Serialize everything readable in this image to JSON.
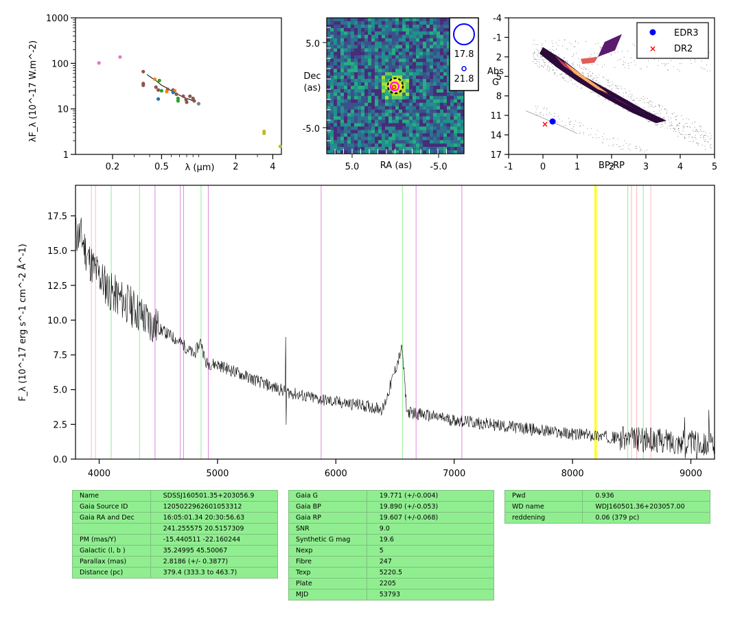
{
  "colors": {
    "EDR3": "#0000ff",
    "DR2": "#ff0000",
    "spectrum": "#000000",
    "line_pink": "#ffb6c1",
    "line_green": "#90ee90",
    "line_violet": "#dd88dd",
    "line_yellow": "#ffff00",
    "table_bg": "#90ee90"
  },
  "chart_data": [
    {
      "type": "scatter",
      "panel": "sed",
      "xscale": "log",
      "yscale": "log",
      "ylabel": "λF_λ (10^-17 W.m^-2)",
      "xlabel": "λ (μm)",
      "ylim": [
        1,
        1000
      ],
      "xlim": [
        0.1,
        4.7
      ],
      "yticks": [
        {
          "v": 1,
          "label": "1"
        },
        {
          "v": 10,
          "label": "10"
        },
        {
          "v": 100,
          "label": "100"
        },
        {
          "v": 1000,
          "label": "1000"
        }
      ],
      "xticks": [
        {
          "v": 0.2,
          "label": "0.2"
        },
        {
          "v": 0.5,
          "label": "0.5"
        },
        {
          "v": 2,
          "label": "2"
        },
        {
          "v": 4,
          "label": "4"
        }
      ],
      "series": [
        {
          "color": "#e377c2",
          "points": [
            [
              0.155,
              102
            ],
            [
              0.23,
              138
            ]
          ]
        },
        {
          "color": "#8c564b",
          "points": [
            [
              0.355,
              66
            ],
            [
              0.355,
              36
            ],
            [
              0.355,
              33
            ],
            [
              0.45,
              30
            ],
            [
              0.47,
              26
            ],
            [
              0.56,
              27
            ],
            [
              0.62,
              26
            ],
            [
              0.66,
              21
            ],
            [
              0.75,
              19
            ],
            [
              0.79,
              16
            ],
            [
              0.8,
              14
            ],
            [
              0.85,
              19
            ],
            [
              0.9,
              17
            ],
            [
              0.92,
              15
            ]
          ]
        },
        {
          "color": "#ff7f0e",
          "points": [
            [
              0.44,
              45
            ],
            [
              0.55,
              24
            ],
            [
              0.64,
              25
            ]
          ]
        },
        {
          "color": "#1f77b4",
          "points": [
            [
              0.47,
              16.5
            ],
            [
              0.62,
              23
            ]
          ]
        },
        {
          "color": "#2ca02c",
          "points": [
            [
              0.48,
              42
            ],
            [
              0.5,
              25
            ],
            [
              0.68,
              17
            ],
            [
              0.68,
              15
            ]
          ]
        },
        {
          "color": "#7f7f7f",
          "points": [
            [
              1.0,
              13
            ]
          ]
        },
        {
          "color": "#bcbd22",
          "points": [
            [
              3.4,
              3.2
            ],
            [
              3.4,
              2.9
            ],
            [
              4.6,
              1.5
            ]
          ]
        }
      ],
      "spectrum_segment": [
        [
          0.38,
          57
        ],
        [
          0.42,
          47
        ],
        [
          0.46,
          40
        ],
        [
          0.5,
          33
        ],
        [
          0.55,
          29
        ],
        [
          0.6,
          25
        ],
        [
          0.65,
          22
        ],
        [
          0.7,
          20
        ],
        [
          0.75,
          18
        ],
        [
          0.8,
          17
        ],
        [
          0.85,
          16
        ],
        [
          0.9,
          15
        ]
      ]
    },
    {
      "type": "heatmap",
      "panel": "image",
      "xlabel": "RA (as)",
      "ylabel": "Dec\n(as)",
      "xtick_labels": [
        "5.0",
        "-5.0"
      ],
      "ytick_labels": [
        "5.0",
        "-5.0"
      ],
      "legend": [
        {
          "label": "17.8"
        },
        {
          "label": "21.8"
        }
      ]
    },
    {
      "type": "scatter",
      "panel": "hrd",
      "xlabel": "BP-RP",
      "ylabel": "Abs\nG",
      "xlim": [
        -1,
        5
      ],
      "ylim": [
        17,
        -4
      ],
      "xtick_labels": [
        "-1",
        "0",
        "1",
        "2",
        "3",
        "4",
        "5"
      ],
      "ytick_labels": [
        "-4",
        "-1",
        "2",
        "5",
        "8",
        "11",
        "14",
        "17"
      ],
      "legend": [
        {
          "name": "EDR3",
          "x": 0.3,
          "y": 12.0
        },
        {
          "name": "DR2",
          "x": 0.1,
          "y": 12.4
        }
      ]
    },
    {
      "type": "line",
      "panel": "spectrum",
      "ylabel": "F_λ (10^-17 erg s^-1 cm^-2 Å^-1)",
      "xlabel": "",
      "xlim": [
        3800,
        9200
      ],
      "ylim": [
        0,
        19.7
      ],
      "xticks": [
        4000,
        5000,
        6000,
        7000,
        8000,
        9000
      ],
      "yticks": [
        "0.0",
        "2.5",
        "5.0",
        "7.5",
        "10.0",
        "12.5",
        "15.0",
        "17.5"
      ],
      "x": [
        3800,
        3850,
        3900,
        3950,
        4000,
        4100,
        4200,
        4300,
        4400,
        4500,
        4600,
        4700,
        4800,
        4860,
        4900,
        5000,
        5200,
        5400,
        5600,
        5800,
        6000,
        6200,
        6400,
        6560,
        6600,
        6800,
        7000,
        7200,
        7400,
        7600,
        7800,
        8000,
        8200,
        8400,
        8600,
        8800,
        9000,
        9200
      ],
      "y": [
        16.2,
        16.0,
        14.6,
        13.8,
        13.2,
        12.0,
        11.4,
        10.8,
        10.0,
        9.4,
        8.9,
        8.3,
        7.5,
        8.5,
        6.9,
        6.8,
        6.1,
        5.4,
        4.8,
        4.4,
        4.1,
        3.9,
        3.6,
        8.0,
        3.4,
        3.1,
        2.8,
        2.6,
        2.4,
        2.2,
        2.0,
        1.8,
        1.7,
        1.5,
        1.4,
        1.3,
        1.2,
        1.1
      ],
      "noise_spikes": [
        [
          5577,
          4.2
        ],
        [
          8950,
          2.2
        ],
        [
          9050,
          2.0
        ],
        [
          9150,
          1.8
        ]
      ],
      "vlines": [
        {
          "x": 3934,
          "color": "#ffb6c1"
        },
        {
          "x": 3969,
          "color": "#ffb6c1"
        },
        {
          "x": 4102,
          "color": "#90ee90"
        },
        {
          "x": 4341,
          "color": "#90ee90"
        },
        {
          "x": 4472,
          "color": "#dd88dd"
        },
        {
          "x": 4686,
          "color": "#dd88dd"
        },
        {
          "x": 4713,
          "color": "#dd88dd"
        },
        {
          "x": 4861,
          "color": "#90ee90"
        },
        {
          "x": 4922,
          "color": "#dd88dd"
        },
        {
          "x": 5876,
          "color": "#dd88dd"
        },
        {
          "x": 6563,
          "color": "#90ee90"
        },
        {
          "x": 6678,
          "color": "#dd88dd"
        },
        {
          "x": 7065,
          "color": "#dd88dd"
        },
        {
          "x": 8190,
          "color": "#ffff00"
        },
        {
          "x": 8200,
          "color": "#ffff00"
        },
        {
          "x": 8467,
          "color": "#90ee90"
        },
        {
          "x": 8498,
          "color": "#ffb6c1"
        },
        {
          "x": 8542,
          "color": "#ffb6c1"
        },
        {
          "x": 8598,
          "color": "#90ee90"
        },
        {
          "x": 8662,
          "color": "#ffb6c1"
        }
      ]
    }
  ],
  "sed": {
    "xlabel": "λ (μm)",
    "ylabel": "λF_λ (10^-17 W.m^-2)"
  },
  "image": {
    "xlabel": "RA (as)",
    "ylabel_l1": "Dec",
    "ylabel_l2": "(as)",
    "xt1": "5.0",
    "xt2": "-5.0",
    "yt1": "5.0",
    "yt2": "-5.0",
    "mag1": "17.8",
    "mag2": "21.8"
  },
  "hrd": {
    "xlabel": "BP-RP",
    "ylabel_l1": "Abs",
    "ylabel_l2": "G",
    "legend1": "EDR3",
    "legend2": "DR2"
  },
  "spec": {
    "ylabel": "F_λ (10^-17 erg s^-1 cm^-2 Å^-1)"
  },
  "tables": {
    "t1": [
      [
        "Name",
        "SDSSJ160501.35+203056.9"
      ],
      [
        "Gaia Source ID",
        "1205022962601053312"
      ],
      [
        "Gaia RA and Dec",
        "16:05:01.34    20:30:56.63"
      ],
      [
        "",
        "241.255575    20.5157309"
      ],
      [
        "PM (mas/Y)",
        "-15.440511    -22.160244"
      ],
      [
        "Galactic (l, b )",
        "35.24995    45.50067"
      ],
      [
        "Parallax (mas)",
        "2.8186 (+/- 0.3877)"
      ],
      [
        "Distance (pc)",
        "379.4 (333.3 to 463.7)"
      ]
    ],
    "t2": [
      [
        "Gaia G",
        "19.771 (+/-0.004)"
      ],
      [
        "Gaia BP",
        "19.890 (+/-0.053)"
      ],
      [
        "Gaia RP",
        "19.607 (+/-0.068)"
      ],
      [
        "SNR",
        "9.0"
      ],
      [
        "Synthetic G mag",
        "19.6"
      ],
      [
        "Nexp",
        "5"
      ],
      [
        "Fibre",
        "247"
      ],
      [
        "Texp",
        "5220.5"
      ],
      [
        "Plate",
        "2205"
      ],
      [
        "MJD",
        "53793"
      ]
    ],
    "t3": [
      [
        "Pwd",
        "0.936"
      ],
      [
        "WD name",
        "WDJ160501.36+203057.00"
      ],
      [
        "reddening",
        "0.06 (379 pc)"
      ]
    ]
  }
}
